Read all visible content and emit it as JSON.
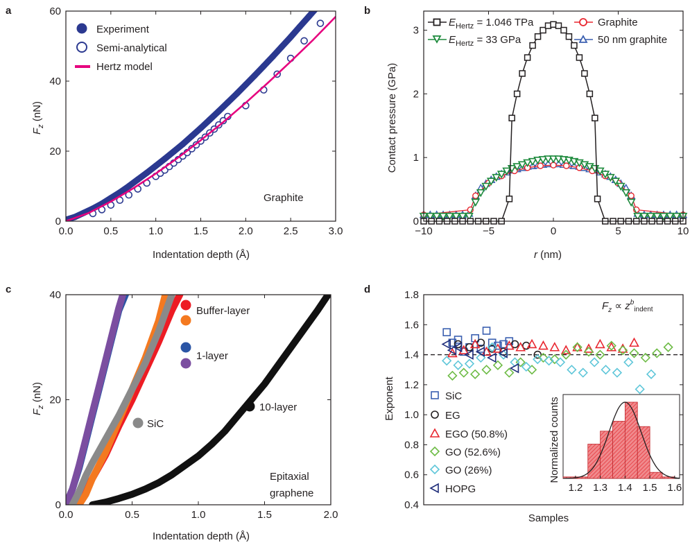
{
  "colors": {
    "experiment": "#2b3990",
    "semi": "#2b3990",
    "hertz": "#e6007e",
    "black": "#231f20",
    "green": "#1d8a3c",
    "red": "#e8262f",
    "blue": "#3a5fb0",
    "buffer_red": "#ed1c24",
    "buffer_orange": "#f47920",
    "one_layer_blue": "#2b55a5",
    "one_layer_purple": "#7b4ea0",
    "sic_gray": "#8a8a8a",
    "ten_layer": "#111111",
    "hist_fill": "#e8474c"
  },
  "chart_data": [
    {
      "panel": "a",
      "type": "scatter",
      "xlabel": "Indentation depth (Å)",
      "ylabel": "F_z (nN)",
      "xlim": [
        0,
        3.0
      ],
      "ylim": [
        0,
        60
      ],
      "xticks": [
        "0.0",
        "0.5",
        "1.0",
        "1.5",
        "2.0",
        "2.5",
        "3.0"
      ],
      "yticks": [
        "0",
        "20",
        "40",
        "60"
      ],
      "annotation": "Graphite",
      "legend_position": "top-left",
      "series": [
        {
          "name": "Experiment",
          "style": "filled-circle-band",
          "x": [
            0.0,
            0.1,
            0.2,
            0.3,
            0.4,
            0.5,
            0.6,
            0.7,
            0.8,
            0.9,
            1.0,
            1.1,
            1.2,
            1.3,
            1.4,
            1.5,
            1.6,
            1.7,
            1.8,
            1.9,
            2.0,
            2.1,
            2.2,
            2.3,
            2.4,
            2.5,
            2.6,
            2.7,
            2.8,
            2.9
          ],
          "y": [
            0.4,
            1.2,
            2.4,
            3.6,
            5.0,
            6.6,
            8.2,
            10.0,
            11.9,
            13.8,
            15.8,
            17.8,
            19.9,
            22.0,
            24.3,
            26.6,
            29.0,
            31.4,
            33.9,
            36.4,
            39.0,
            41.6,
            44.3,
            47.0,
            49.8,
            52.6,
            55.5,
            58.4,
            61.3,
            64.3
          ]
        },
        {
          "name": "Semi-analytical",
          "style": "open-circle",
          "x": [
            0.3,
            0.4,
            0.5,
            0.6,
            0.7,
            0.8,
            0.9,
            1.0,
            1.05,
            1.1,
            1.15,
            1.2,
            1.25,
            1.3,
            1.35,
            1.4,
            1.45,
            1.5,
            1.55,
            1.6,
            1.65,
            1.7,
            1.75,
            1.8,
            2.0,
            2.2,
            2.35,
            2.5,
            2.65,
            2.83
          ],
          "y": [
            2.2,
            3.3,
            4.6,
            6.0,
            7.5,
            9.2,
            10.9,
            12.8,
            13.7,
            14.6,
            15.6,
            16.6,
            17.6,
            18.6,
            19.6,
            20.7,
            21.8,
            22.9,
            24.0,
            25.2,
            26.3,
            27.5,
            28.7,
            29.9,
            33.0,
            37.5,
            42.0,
            46.5,
            51.5,
            56.5
          ]
        },
        {
          "name": "Hertz model",
          "style": "line",
          "x": [
            0.0,
            0.25,
            0.5,
            0.75,
            1.0,
            1.25,
            1.5,
            1.75,
            2.0,
            2.25,
            2.5,
            2.75,
            3.0
          ],
          "y": [
            0.0,
            2.3,
            5.6,
            9.4,
            13.6,
            18.2,
            23.1,
            28.3,
            33.8,
            39.6,
            45.6,
            51.8,
            58.4
          ]
        }
      ]
    },
    {
      "panel": "b",
      "type": "line",
      "xlabel": "r (nm)",
      "ylabel": "Contact pressure (GPa)",
      "xlim": [
        -10,
        10
      ],
      "ylim": [
        0,
        3.3
      ],
      "xticks": [
        "−10",
        "−5",
        "0",
        "5",
        "10"
      ],
      "yticks": [
        "0",
        "1",
        "2",
        "3"
      ],
      "legend_position": "top",
      "series": [
        {
          "name": "E_Hertz = 1.046 TPa",
          "style": "open-square",
          "x": [
            -10,
            -9.4,
            -8.8,
            -8.2,
            -7.6,
            -7.0,
            -6.4,
            -5.8,
            -5.2,
            -4.6,
            -4.0,
            -3.4,
            -3.2,
            -2.8,
            -2.4,
            -2.0,
            -1.6,
            -1.2,
            -0.8,
            -0.4,
            0.0,
            0.4,
            0.8,
            1.2,
            1.6,
            2.0,
            2.4,
            2.8,
            3.2,
            3.4,
            4.0,
            4.6,
            5.2,
            5.8,
            6.4,
            7.0,
            7.6,
            8.2,
            8.8,
            9.4,
            10
          ],
          "y": [
            0,
            0,
            0,
            0,
            0,
            0,
            0,
            0,
            0,
            0,
            0,
            0.35,
            1.62,
            2.0,
            2.32,
            2.57,
            2.76,
            2.9,
            3.0,
            3.07,
            3.09,
            3.07,
            3.0,
            2.9,
            2.76,
            2.57,
            2.32,
            2.0,
            1.62,
            0.35,
            0,
            0,
            0,
            0,
            0,
            0,
            0,
            0,
            0,
            0,
            0
          ]
        },
        {
          "name": "E_Hertz = 33 GPa",
          "style": "open-triangle-down",
          "x": [
            -10,
            -9.5,
            -9.0,
            -8.5,
            -8.0,
            -7.5,
            -7.0,
            -6.5,
            -6.0,
            -5.6,
            -5.2,
            -4.8,
            -4.4,
            -4.0,
            -3.6,
            -3.2,
            -2.8,
            -2.4,
            -2.0,
            -1.6,
            -1.2,
            -0.8,
            -0.4,
            0.0,
            0.4,
            0.8,
            1.2,
            1.6,
            2.0,
            2.4,
            2.8,
            3.2,
            3.6,
            4.0,
            4.4,
            4.8,
            5.2,
            5.6,
            6.0,
            6.5,
            7.0,
            7.5,
            8.0,
            8.5,
            9.0,
            9.5,
            10
          ],
          "y": [
            0.08,
            0.08,
            0.08,
            0.08,
            0.08,
            0.08,
            0.08,
            0.08,
            0.3,
            0.45,
            0.55,
            0.63,
            0.69,
            0.74,
            0.79,
            0.83,
            0.86,
            0.89,
            0.92,
            0.94,
            0.96,
            0.97,
            0.98,
            0.98,
            0.98,
            0.97,
            0.96,
            0.94,
            0.92,
            0.89,
            0.86,
            0.83,
            0.79,
            0.74,
            0.69,
            0.63,
            0.55,
            0.45,
            0.3,
            0.08,
            0.08,
            0.08,
            0.08,
            0.08,
            0.08,
            0.08,
            0.08
          ]
        },
        {
          "name": "Graphite",
          "style": "open-circle-line",
          "x": [
            -10,
            -6.4,
            -6.0,
            -5.0,
            -4.0,
            -3.0,
            -2.0,
            -1.0,
            0.0,
            1.0,
            2.0,
            3.0,
            4.0,
            5.0,
            6.0,
            6.4,
            10
          ],
          "y": [
            0.1,
            0.18,
            0.4,
            0.6,
            0.71,
            0.79,
            0.84,
            0.87,
            0.88,
            0.87,
            0.84,
            0.79,
            0.71,
            0.6,
            0.4,
            0.18,
            0.1
          ]
        },
        {
          "name": "50 nm graphite",
          "style": "open-triangle-up",
          "x": [
            -10,
            -9.5,
            -9.0,
            -8.5,
            -8.0,
            -7.5,
            -7.0,
            -6.5,
            -6.0,
            -5.6,
            -5.2,
            -4.8,
            -4.4,
            -4.0,
            -3.6,
            -3.2,
            -2.8,
            -2.4,
            -2.0,
            -1.6,
            -1.2,
            -0.8,
            -0.4,
            0.0,
            0.4,
            0.8,
            1.2,
            1.6,
            2.0,
            2.4,
            2.8,
            3.2,
            3.6,
            4.0,
            4.4,
            4.8,
            5.2,
            5.6,
            6.0,
            6.5,
            7.0,
            7.5,
            8.0,
            8.5,
            9.0,
            9.5,
            10
          ],
          "y": [
            0.1,
            0.1,
            0.1,
            0.1,
            0.1,
            0.1,
            0.1,
            0.12,
            0.4,
            0.52,
            0.59,
            0.65,
            0.7,
            0.74,
            0.77,
            0.8,
            0.82,
            0.84,
            0.86,
            0.87,
            0.88,
            0.89,
            0.9,
            0.9,
            0.9,
            0.89,
            0.88,
            0.87,
            0.86,
            0.84,
            0.82,
            0.8,
            0.77,
            0.74,
            0.7,
            0.65,
            0.59,
            0.52,
            0.4,
            0.12,
            0.1,
            0.1,
            0.1,
            0.1,
            0.1,
            0.1,
            0.1
          ]
        }
      ]
    },
    {
      "panel": "c",
      "type": "line",
      "xlabel": "Indentation depth (Å)",
      "ylabel": "F_z (nN)",
      "xlim": [
        0,
        2.0
      ],
      "ylim": [
        0,
        40
      ],
      "xticks": [
        "0.0",
        "0.5",
        "1.0",
        "1.5",
        "2.0"
      ],
      "yticks": [
        "0",
        "20",
        "40"
      ],
      "annotation": [
        "Epitaxial",
        "graphene"
      ],
      "labels": {
        "buffer": "Buffer-layer",
        "one": "1-layer",
        "ten": "10-layer",
        "sic": "SiC"
      },
      "series": [
        {
          "name": "Buffer-layer (red)",
          "color_key": "buffer_red",
          "x": [
            0.05,
            0.12,
            0.2,
            0.3,
            0.4,
            0.5,
            0.6,
            0.7,
            0.8,
            0.86
          ],
          "y": [
            0,
            2,
            5,
            9.5,
            15,
            20,
            25.5,
            31,
            37,
            40
          ]
        },
        {
          "name": "Buffer-layer (orange)",
          "color_key": "buffer_orange",
          "x": [
            0.1,
            0.15,
            0.2,
            0.3,
            0.4,
            0.5,
            0.6,
            0.7,
            0.75
          ],
          "y": [
            0,
            2,
            5,
            10,
            16,
            22,
            28,
            35,
            40
          ]
        },
        {
          "name": "1-layer (blue)",
          "color_key": "one_layer_blue",
          "x": [
            0.0,
            0.05,
            0.1,
            0.15,
            0.2,
            0.25,
            0.3,
            0.35,
            0.4,
            0.45
          ],
          "y": [
            0,
            3,
            7,
            12,
            17,
            22,
            27,
            32,
            37,
            40
          ]
        },
        {
          "name": "1-layer (purple)",
          "color_key": "one_layer_purple",
          "x": [
            0.0,
            0.05,
            0.1,
            0.15,
            0.2,
            0.25,
            0.3,
            0.35,
            0.4,
            0.43
          ],
          "y": [
            0,
            3,
            7.5,
            12.5,
            17.5,
            22.5,
            27.5,
            32.5,
            37.5,
            40
          ]
        },
        {
          "name": "SiC",
          "color_key": "sic_gray",
          "x": [
            0.05,
            0.1,
            0.15,
            0.2,
            0.3,
            0.4,
            0.5,
            0.6,
            0.7,
            0.8
          ],
          "y": [
            0,
            2.5,
            5.5,
            8,
            12.5,
            17,
            22,
            27,
            33,
            40
          ]
        },
        {
          "name": "10-layer",
          "color_key": "ten_layer",
          "x": [
            0.2,
            0.3,
            0.4,
            0.5,
            0.6,
            0.7,
            0.8,
            0.9,
            1.0,
            1.1,
            1.2,
            1.3,
            1.4,
            1.5,
            1.6,
            1.7,
            1.8,
            1.9,
            1.98
          ],
          "y": [
            0,
            0.5,
            1.2,
            2.0,
            3.0,
            4.2,
            5.7,
            7.5,
            9.3,
            11.5,
            14,
            17,
            20,
            23,
            26.5,
            30,
            33.5,
            37,
            40
          ]
        }
      ]
    },
    {
      "panel": "d",
      "type": "scatter",
      "xlabel": "Samples",
      "ylabel": "Exponent",
      "ylim": [
        0.4,
        1.8
      ],
      "yticks": [
        "0.4",
        "0.6",
        "0.8",
        "1.0",
        "1.2",
        "1.4",
        "1.6",
        "1.8"
      ],
      "reference_line": 1.4,
      "formula": {
        "base": "F",
        "sub1": "z",
        "mid": " ∝ z",
        "sup": "b",
        "sub2": "indent"
      },
      "legend_position": "left",
      "series": [
        {
          "name": "SiC",
          "shape": "square",
          "color_key": "blue",
          "x": [
            1,
            2,
            3,
            4,
            5,
            6,
            7,
            8,
            9,
            10,
            11,
            12
          ],
          "y": [
            1.55,
            1.48,
            1.5,
            1.42,
            1.45,
            1.51,
            1.44,
            1.56,
            1.48,
            1.46,
            1.47,
            1.49
          ]
        },
        {
          "name": "EG",
          "shape": "circle",
          "color_key": "black",
          "x": [
            3,
            5,
            7,
            9,
            11,
            13,
            15,
            17
          ],
          "y": [
            1.47,
            1.45,
            1.48,
            1.44,
            1.42,
            1.47,
            1.46,
            1.4
          ]
        },
        {
          "name": "EGO (50.8%)",
          "shape": "triangle-up",
          "color_key": "red",
          "x": [
            2,
            4,
            6,
            8,
            10,
            12,
            14,
            16,
            18,
            20,
            22,
            24,
            26,
            28,
            30,
            32,
            34
          ],
          "y": [
            1.41,
            1.43,
            1.47,
            1.42,
            1.44,
            1.46,
            1.45,
            1.47,
            1.46,
            1.45,
            1.43,
            1.45,
            1.44,
            1.47,
            1.45,
            1.44,
            1.48
          ]
        },
        {
          "name": "GO (52.6%)",
          "shape": "diamond",
          "color_key": "green",
          "x": [
            2,
            4,
            6,
            8,
            10,
            12,
            14,
            16,
            18,
            20,
            22,
            24,
            26,
            28,
            30,
            32,
            34,
            36,
            38,
            40
          ],
          "y": [
            1.26,
            1.28,
            1.27,
            1.3,
            1.33,
            1.28,
            1.35,
            1.3,
            1.38,
            1.37,
            1.4,
            1.45,
            1.42,
            1.4,
            1.46,
            1.43,
            1.41,
            1.38,
            1.41,
            1.45
          ]
        },
        {
          "name": "GO (26%)",
          "shape": "diamond",
          "color_key": "cyan",
          "x": [
            1,
            3,
            5,
            7,
            9,
            11,
            13,
            15,
            17,
            19,
            21,
            23,
            25,
            27,
            29,
            31,
            33,
            35,
            37
          ],
          "y": [
            1.36,
            1.33,
            1.34,
            1.38,
            1.45,
            1.4,
            1.35,
            1.32,
            1.37,
            1.36,
            1.35,
            1.3,
            1.28,
            1.35,
            1.3,
            1.28,
            1.35,
            1.17,
            1.27
          ]
        },
        {
          "name": "HOPG",
          "shape": "triangle-left",
          "color_key": "navy",
          "x": [
            1,
            2,
            3,
            5,
            7,
            9,
            11,
            13
          ],
          "y": [
            1.47,
            1.43,
            1.45,
            1.4,
            1.42,
            1.38,
            1.41,
            1.31
          ]
        }
      ],
      "inset": {
        "type": "bar",
        "ylabel": "Normalized counts",
        "xlim": [
          1.15,
          1.62
        ],
        "xticks": [
          "1.2",
          "1.3",
          "1.4",
          "1.5",
          "1.6"
        ],
        "bins": [
          1.15,
          1.2,
          1.25,
          1.3,
          1.35,
          1.4,
          1.45,
          1.5,
          1.55,
          1.6
        ],
        "counts": [
          0.02,
          0.02,
          0.45,
          0.62,
          0.75,
          1.0,
          0.68,
          0.08,
          0.02
        ],
        "fit_peak": 1.4,
        "fit_sigma": 0.065
      }
    }
  ],
  "panel_labels": [
    "a",
    "b",
    "c",
    "d"
  ]
}
